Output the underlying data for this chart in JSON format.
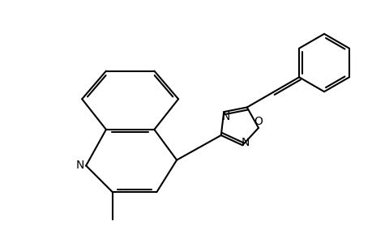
{
  "bg_color": "#ffffff",
  "line_color": "#000000",
  "line_width": 1.5,
  "label_fontsize": 10,
  "figsize": [
    4.6,
    3.0
  ],
  "dpi": 100,
  "xlim": [
    0,
    9.2
  ],
  "ylim": [
    0,
    6.0
  ]
}
